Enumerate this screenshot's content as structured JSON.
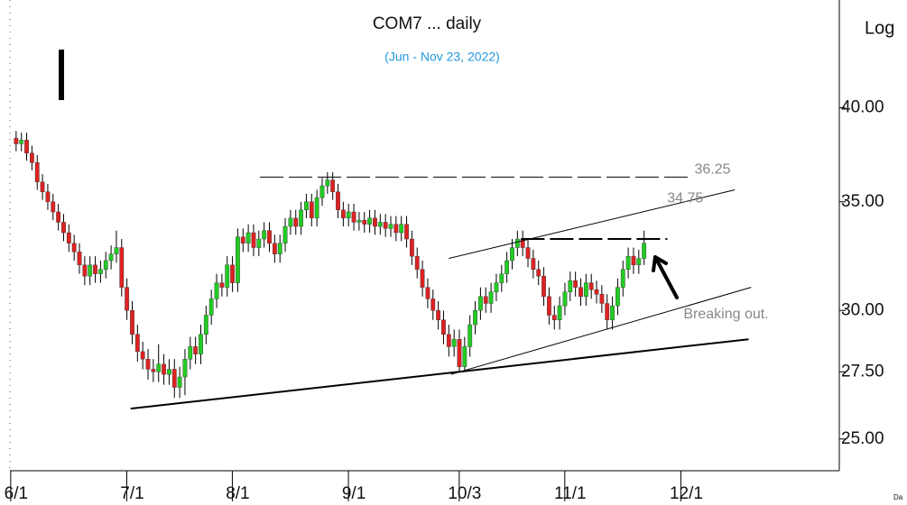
{
  "chart_data": {
    "type": "candlestick",
    "title": "COM7 ... daily",
    "subtitle": "(Jun - Nov 23, 2022)",
    "scale_label": "Log",
    "footer": "Da",
    "log_scale": true,
    "up_color": "#22cc22",
    "down_color": "#dd2222",
    "xlim": [
      -1,
      156
    ],
    "ylim": [
      23.9,
      46.6
    ],
    "xticks": [
      {
        "value": 0,
        "label": "6/1"
      },
      {
        "value": 22,
        "label": "7/1"
      },
      {
        "value": 42,
        "label": "8/1"
      },
      {
        "value": 64,
        "label": "9/1"
      },
      {
        "value": 85,
        "label": "10/3"
      },
      {
        "value": 105,
        "label": "11/1"
      },
      {
        "value": 127,
        "label": "12/1"
      }
    ],
    "yticks": [
      {
        "value": 25,
        "label": "25.00"
      },
      {
        "value": 27.5,
        "label": "27.50"
      },
      {
        "value": 30,
        "label": "30.00"
      },
      {
        "value": 35,
        "label": "35.00"
      },
      {
        "value": 40,
        "label": "40.00"
      }
    ],
    "open": [
      38.3,
      38.0,
      38.2,
      37.5,
      37.0,
      36.0,
      35.5,
      35.0,
      34.5,
      34.0,
      33.5,
      33.0,
      32.6,
      32.0,
      31.5,
      32.0,
      31.6,
      31.8,
      32.2,
      32.5,
      32.8,
      31.0,
      30.0,
      29.0,
      28.3,
      28.0,
      27.6,
      27.5,
      27.8,
      27.4,
      27.6,
      26.9,
      27.3,
      28.0,
      28.5,
      28.2,
      29.0,
      29.8,
      30.5,
      31.2,
      31.0,
      32.0,
      31.2,
      33.3,
      33.0,
      33.5,
      32.8,
      33.2,
      33.6,
      33.0,
      32.5,
      33.0,
      33.8,
      34.2,
      33.8,
      34.6,
      35.0,
      34.2,
      35.2,
      35.8,
      36.1,
      35.5,
      34.6,
      34.2,
      34.5,
      34.0,
      34.1,
      33.9,
      34.2,
      33.8,
      34.0,
      33.7,
      33.9,
      33.5,
      33.9,
      33.2,
      32.4,
      31.8,
      31.0,
      30.5,
      30.0,
      29.6,
      29.0,
      28.5,
      28.8,
      27.7,
      28.5,
      29.4,
      30.0,
      30.6,
      30.3,
      30.8,
      31.2,
      31.6,
      32.2,
      32.8,
      33.2,
      32.8,
      32.3,
      31.8,
      31.5,
      30.6,
      29.8,
      29.6,
      30.2,
      30.8,
      31.3,
      31.0,
      30.6,
      31.2,
      30.9,
      30.7,
      30.3,
      29.6,
      30.2,
      31.0,
      31.8,
      32.4,
      32.0,
      32.3
    ],
    "high": [
      38.7,
      38.6,
      38.6,
      37.9,
      37.4,
      36.4,
      35.9,
      35.4,
      34.9,
      34.4,
      33.9,
      33.4,
      33.0,
      32.4,
      32.4,
      32.4,
      32.2,
      32.6,
      32.9,
      33.6,
      33.2,
      31.4,
      30.4,
      29.4,
      28.7,
      28.4,
      28.0,
      28.6,
      28.2,
      28.0,
      28.0,
      27.7,
      28.4,
      28.9,
      28.9,
      29.4,
      30.2,
      30.9,
      31.6,
      31.6,
      32.4,
      32.4,
      33.7,
      33.7,
      33.9,
      33.9,
      33.6,
      34.0,
      34.0,
      33.4,
      33.4,
      34.2,
      34.6,
      34.6,
      35.0,
      35.4,
      35.4,
      35.6,
      36.2,
      36.5,
      36.5,
      35.9,
      35.0,
      34.9,
      34.9,
      34.5,
      34.5,
      34.6,
      34.6,
      34.4,
      34.4,
      34.3,
      34.3,
      34.3,
      34.3,
      33.6,
      32.8,
      32.2,
      31.4,
      30.9,
      30.4,
      30.0,
      29.4,
      29.2,
      29.2,
      28.9,
      29.8,
      30.4,
      31.0,
      31.0,
      31.2,
      31.6,
      32.0,
      32.6,
      33.2,
      33.6,
      33.6,
      33.2,
      32.7,
      32.2,
      31.9,
      31.0,
      30.2,
      30.6,
      31.2,
      31.7,
      31.7,
      31.4,
      31.6,
      31.6,
      31.3,
      31.1,
      30.7,
      30.6,
      31.4,
      32.2,
      32.8,
      32.8,
      32.7,
      33.6
    ],
    "low": [
      37.6,
      37.6,
      37.1,
      36.6,
      35.6,
      35.1,
      34.6,
      34.1,
      33.6,
      33.1,
      32.6,
      32.2,
      31.6,
      31.1,
      31.1,
      31.2,
      31.2,
      31.4,
      31.8,
      32.1,
      30.6,
      29.6,
      28.6,
      27.9,
      27.6,
      27.2,
      27.1,
      27.1,
      27.0,
      27.0,
      26.5,
      26.5,
      26.6,
      27.6,
      27.8,
      27.8,
      28.6,
      29.4,
      30.1,
      30.6,
      30.6,
      30.8,
      30.8,
      32.6,
      32.6,
      32.4,
      32.4,
      32.8,
      32.6,
      32.1,
      32.1,
      32.6,
      33.4,
      33.4,
      33.4,
      34.2,
      33.8,
      33.8,
      34.8,
      35.4,
      35.1,
      34.2,
      33.8,
      33.8,
      33.6,
      33.6,
      33.5,
      33.5,
      33.4,
      33.4,
      33.3,
      33.3,
      33.1,
      33.1,
      32.8,
      32.0,
      31.4,
      30.6,
      30.1,
      29.6,
      29.2,
      28.6,
      28.1,
      28.1,
      27.5,
      27.5,
      28.1,
      29.0,
      29.6,
      29.9,
      29.9,
      30.4,
      30.8,
      31.2,
      31.8,
      32.4,
      32.4,
      31.9,
      31.4,
      31.1,
      30.2,
      29.4,
      29.2,
      29.2,
      29.8,
      30.4,
      30.6,
      30.2,
      30.2,
      30.5,
      30.3,
      29.9,
      29.2,
      29.2,
      29.8,
      30.6,
      31.4,
      31.6,
      31.6,
      32.0
    ],
    "close": [
      38.0,
      38.2,
      37.5,
      37.0,
      36.0,
      35.5,
      35.0,
      34.5,
      34.0,
      33.5,
      33.0,
      32.6,
      32.0,
      31.5,
      32.0,
      31.6,
      31.8,
      32.2,
      32.5,
      32.8,
      31.0,
      30.0,
      29.0,
      28.3,
      28.0,
      27.6,
      27.5,
      27.8,
      27.4,
      27.6,
      26.9,
      27.3,
      28.0,
      28.5,
      28.2,
      29.0,
      29.8,
      30.5,
      31.2,
      31.0,
      32.0,
      31.2,
      33.3,
      33.0,
      33.5,
      32.8,
      33.2,
      33.6,
      33.0,
      32.5,
      33.0,
      33.8,
      34.2,
      33.8,
      34.6,
      35.0,
      34.2,
      35.2,
      35.8,
      36.1,
      35.5,
      34.6,
      34.2,
      34.5,
      34.0,
      34.1,
      33.9,
      34.2,
      33.8,
      34.0,
      33.7,
      33.9,
      33.5,
      33.9,
      33.2,
      32.4,
      31.8,
      31.0,
      30.5,
      30.0,
      29.6,
      29.0,
      28.5,
      28.8,
      27.7,
      28.5,
      29.4,
      30.0,
      30.6,
      30.3,
      30.8,
      31.2,
      31.6,
      32.2,
      32.8,
      33.2,
      32.8,
      32.3,
      31.8,
      31.5,
      30.6,
      29.8,
      29.6,
      30.2,
      30.8,
      31.3,
      31.0,
      30.6,
      31.2,
      30.9,
      30.7,
      30.3,
      29.6,
      30.2,
      31.0,
      31.8,
      32.4,
      32.0,
      32.3,
      33.0
    ],
    "trendlines": [
      {
        "x": [
          21.7,
          138.8
        ],
        "y": [
          26.1,
          28.8
        ],
        "style": "solid",
        "width": 2,
        "color": "#000000"
      },
      {
        "x": [
          82,
          136.2
        ],
        "y": [
          32.3,
          35.6
        ],
        "style": "solid",
        "width": 1,
        "color": "#000000",
        "label": "34.75"
      },
      {
        "x": [
          82.4,
          139.3
        ],
        "y": [
          27.4,
          31.0
        ],
        "style": "solid",
        "width": 1,
        "color": "#000000",
        "label": "Breaking out."
      },
      {
        "x": [
          46.2,
          127.7
        ],
        "y": [
          36.25,
          36.25
        ],
        "style": "dashed",
        "width": 1,
        "color": "#000000",
        "label": "36.25"
      },
      {
        "x": [
          95.7,
          123.4
        ],
        "y": [
          33.2,
          33.2
        ],
        "style": "dashed",
        "width": 2,
        "color": "#000000"
      }
    ]
  }
}
